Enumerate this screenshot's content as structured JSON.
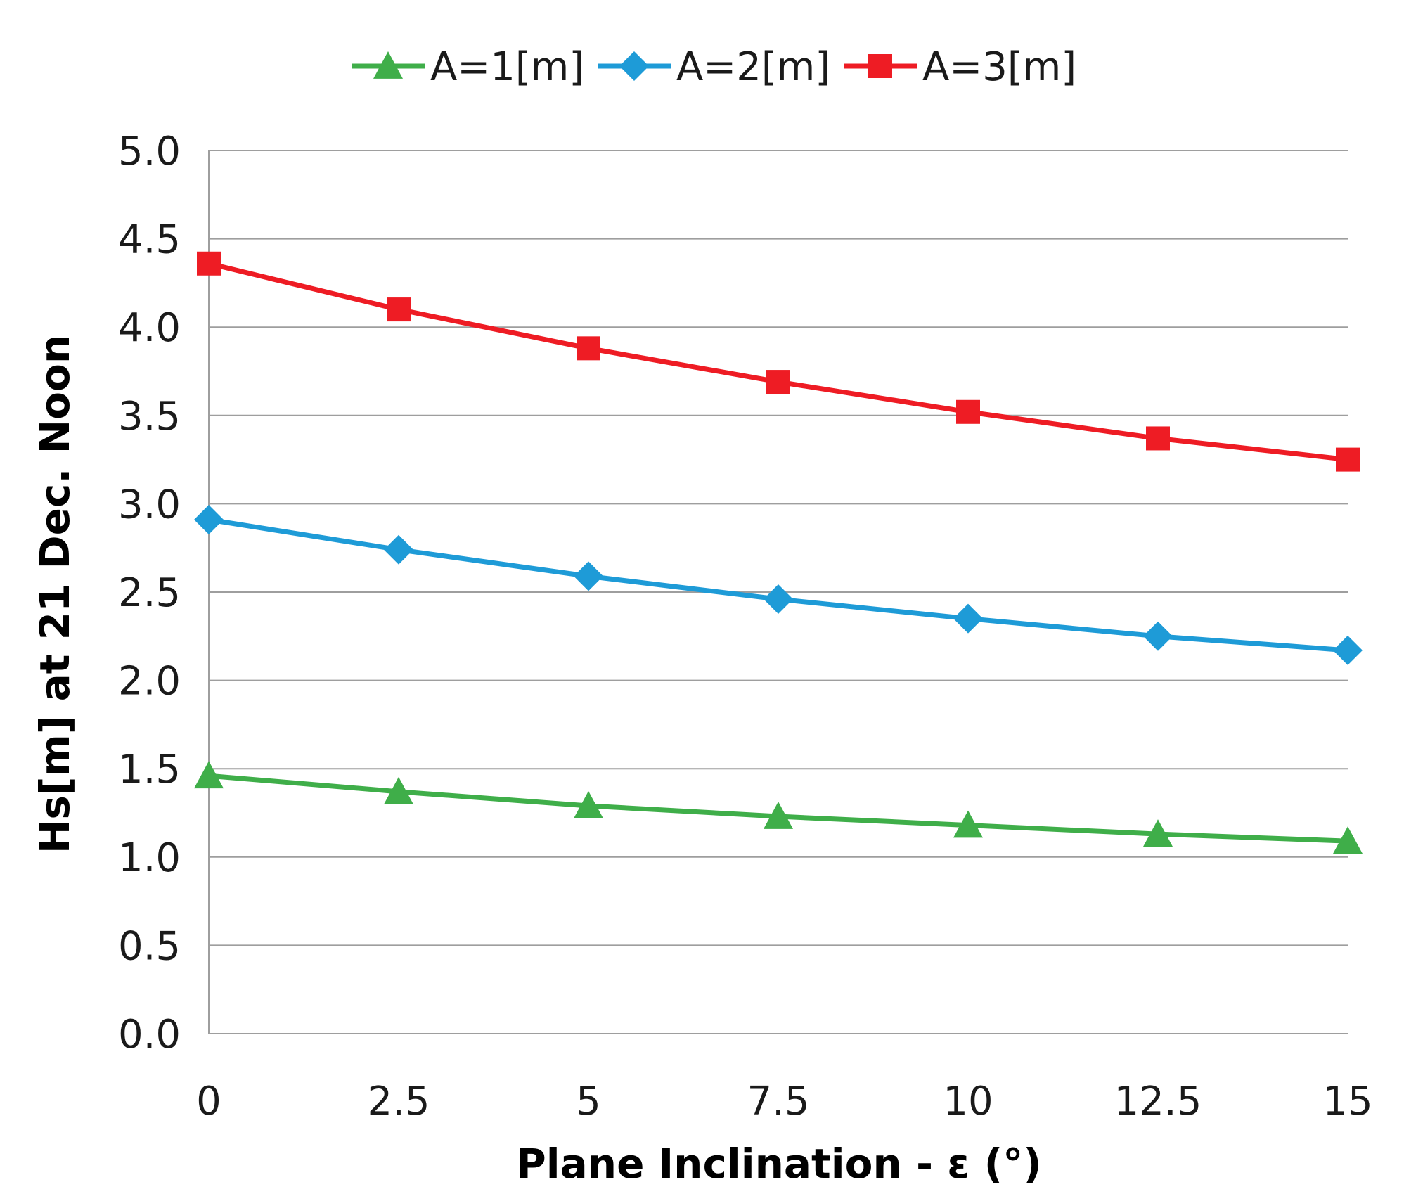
{
  "chart_data": {
    "type": "line",
    "title": "",
    "xlabel": "Plane Inclination - ε (°)",
    "ylabel": "Hs[m] at 21 Dec. Noon",
    "x": [
      0,
      2.5,
      5,
      7.5,
      10,
      12.5,
      15
    ],
    "x_tick_labels": [
      "0",
      "2.5",
      "5",
      "7.5",
      "10",
      "12.5",
      "15"
    ],
    "y_tick_labels": [
      "0.0",
      "0.5",
      "1.0",
      "1.5",
      "2.0",
      "2.5",
      "3.0",
      "3.5",
      "4.0",
      "4.5",
      "5.0"
    ],
    "xlim": [
      0,
      15
    ],
    "ylim": [
      0,
      5
    ],
    "grid": "horizontal",
    "legend_position": "top-center",
    "series": [
      {
        "name": "A=1[m]",
        "color": "#3fae49",
        "marker": "triangle",
        "values": [
          1.46,
          1.37,
          1.29,
          1.23,
          1.18,
          1.13,
          1.09
        ]
      },
      {
        "name": "A=2[m]",
        "color": "#1e9bd7",
        "marker": "diamond",
        "values": [
          2.91,
          2.74,
          2.59,
          2.46,
          2.35,
          2.25,
          2.17
        ]
      },
      {
        "name": "A=3[m]",
        "color": "#ee1c24",
        "marker": "square",
        "values": [
          4.36,
          4.1,
          3.88,
          3.69,
          3.52,
          3.37,
          3.25
        ]
      }
    ]
  }
}
